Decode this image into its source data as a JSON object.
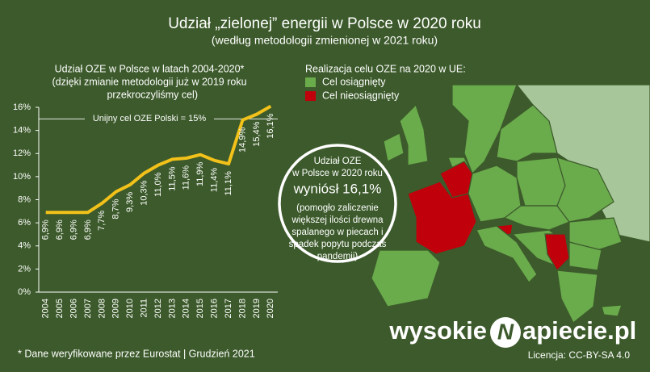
{
  "header": {
    "title": "Udział „zielonej” energii w Polsce w 2020 roku",
    "subtitle": "(według metodologii zmienionej w 2021 roku)"
  },
  "chart_data": {
    "type": "line",
    "title": [
      "Udział OZE w Polsce w latach 2004-2020*",
      "(dzięki zmianie metodologii już w 2019 roku",
      "przekroczyliśmy cel)"
    ],
    "categories": [
      "2004",
      "2005",
      "2006",
      "2007",
      "2008",
      "2009",
      "2010",
      "2011",
      "2012",
      "2013",
      "2014",
      "2015",
      "2016",
      "2017",
      "2018",
      "2019",
      "2020"
    ],
    "values": [
      6.9,
      6.9,
      6.9,
      6.9,
      7.7,
      8.7,
      9.3,
      10.3,
      11.0,
      11.5,
      11.6,
      11.9,
      11.4,
      11.1,
      14.9,
      15.4,
      16.1
    ],
    "value_labels": [
      "6,9%",
      "6,9%",
      "6,9%",
      "6,9%",
      "7,7%",
      "8,7%",
      "9,3%",
      "10,3%",
      "11,0%",
      "11,5%",
      "11,6%",
      "11,9%",
      "11,4%",
      "11,1%",
      "14,9%",
      "15,4%",
      "16,1%"
    ],
    "color": "#f2c11a",
    "ylim": [
      0,
      16
    ],
    "yticks": [
      {
        "value": 0,
        "label": "0%"
      },
      {
        "value": 2,
        "label": "2%"
      },
      {
        "value": 4,
        "label": "4%"
      },
      {
        "value": 6,
        "label": "6%"
      },
      {
        "value": 8,
        "label": "8%"
      },
      {
        "value": 10,
        "label": "10%"
      },
      {
        "value": 12,
        "label": "12%"
      },
      {
        "value": 14,
        "label": "14%"
      },
      {
        "value": 16,
        "label": "16%"
      }
    ],
    "grid": false,
    "target_line": {
      "value": 15,
      "label": "Unijny cel OZE Polski = 15%"
    }
  },
  "map": {
    "legend_title": "Realizacja celu OZE na 2020 w UE:",
    "legend": [
      {
        "label": "Cel osiągnięty",
        "color": "#6aab4c"
      },
      {
        "label": "Cel nieosiągnięty",
        "color": "#c0000b"
      }
    ],
    "callout": [
      "Udział OZE",
      "w Polsce w 2020 roku",
      "wyniósł 16,1%",
      "(pomogło zaliczenie",
      "większej ilości drewna",
      "spalanego w piecach i",
      "spadek popytu podczas",
      "pandemii)"
    ]
  },
  "footer": {
    "note": "* Dane weryfikowane przez Eurostat |  Grudzień 2021",
    "logo": [
      "wysokie",
      "N",
      "apiecie.pl"
    ],
    "license": "Licencja: CC-BY-SA 4.0"
  }
}
